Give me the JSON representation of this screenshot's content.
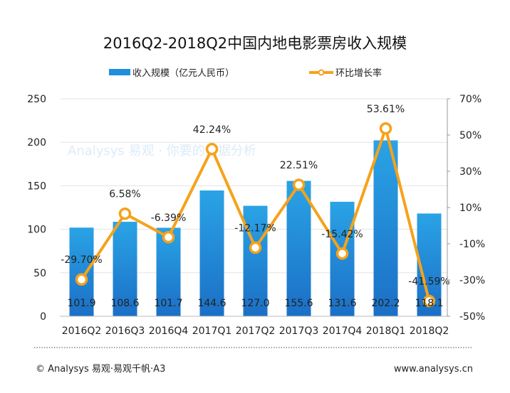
{
  "chart_data": {
    "type": "bar",
    "title": "2016Q2-2018Q2中国内地电影票房收入规模",
    "categories": [
      "2016Q2",
      "2016Q3",
      "2016Q4",
      "2017Q1",
      "2017Q2",
      "2017Q3",
      "2017Q4",
      "2018Q1",
      "2018Q2"
    ],
    "series": [
      {
        "name": "收入规模（亿元人民币）",
        "type": "bar",
        "axis": "left",
        "values": [
          101.9,
          108.6,
          101.7,
          144.6,
          127.0,
          155.6,
          131.6,
          202.2,
          118.1
        ],
        "labels": [
          "101.9",
          "108.6",
          "101.7",
          "144.6",
          "127.0",
          "155.6",
          "131.6",
          "202.2",
          "118.1"
        ]
      },
      {
        "name": "环比增长率",
        "type": "line",
        "axis": "right",
        "values": [
          -29.7,
          6.58,
          -6.39,
          42.24,
          -12.17,
          22.51,
          -15.42,
          53.61,
          -41.59
        ],
        "labels": [
          "-29.70%",
          "6.58%",
          "-6.39%",
          "42.24%",
          "-12.17%",
          "22.51%",
          "-15.42%",
          "53.61%",
          "-41.59%"
        ]
      }
    ],
    "ylim": [
      0,
      250
    ],
    "yticks": [
      "0",
      "50",
      "100",
      "150",
      "200",
      "250"
    ],
    "y2lim": [
      -50,
      70
    ],
    "y2ticks": [
      "-50%",
      "-30%",
      "-10%",
      "10%",
      "30%",
      "50%",
      "70%"
    ],
    "legend_position": "top",
    "grid": true,
    "colors": {
      "bar_top": "#2aa3e6",
      "bar_bottom": "#1b6fc6",
      "line": "#f5a21b"
    }
  },
  "watermark": "Analysys 易观 · 你要的数据分析",
  "footer": {
    "copyright": "© Analysys 易观·易观千帆·A3",
    "website": "www.analysys.cn"
  }
}
